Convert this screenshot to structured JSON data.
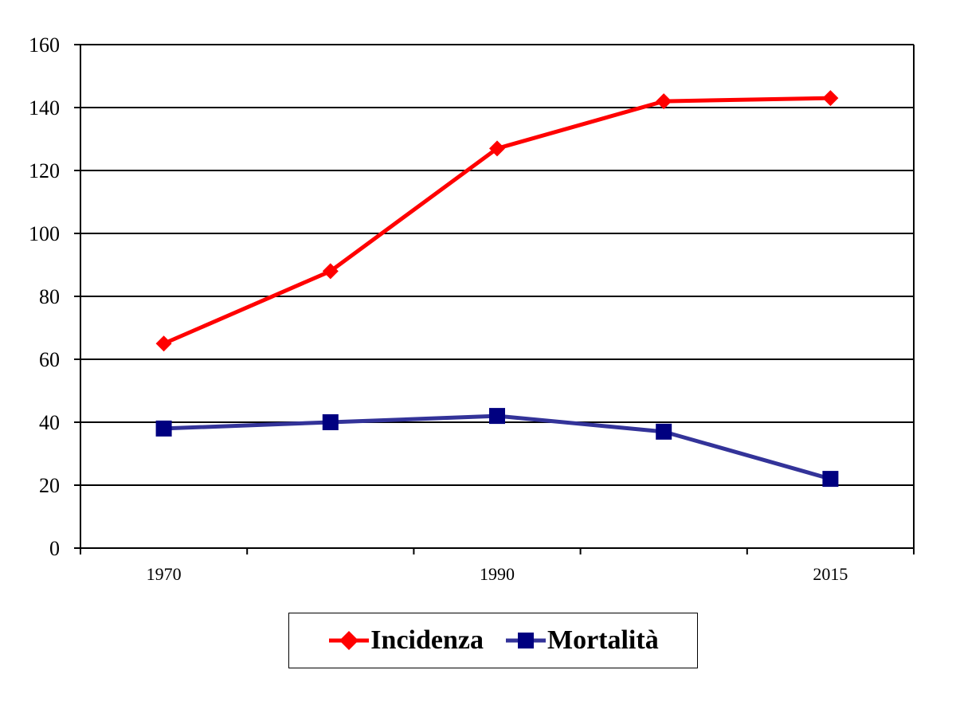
{
  "chart_data": {
    "type": "line",
    "x": [
      1970,
      1980,
      1990,
      2000,
      2015
    ],
    "x_tick_labels": [
      "1970",
      "",
      "1990",
      "",
      "2015"
    ],
    "y_ticks": [
      "0",
      "20",
      "40",
      "60",
      "80",
      "100",
      "120",
      "140",
      "160"
    ],
    "ylim": [
      0,
      160
    ],
    "grid": true,
    "legend_position": "bottom",
    "series": [
      {
        "name": "Incidenza",
        "values": [
          65,
          88,
          127,
          142,
          143
        ],
        "color": "#ff0000",
        "marker": "diamond"
      },
      {
        "name": "Mortalità",
        "values": [
          38,
          40,
          42,
          37,
          22
        ],
        "color": "#333399",
        "marker": "square"
      }
    ]
  }
}
